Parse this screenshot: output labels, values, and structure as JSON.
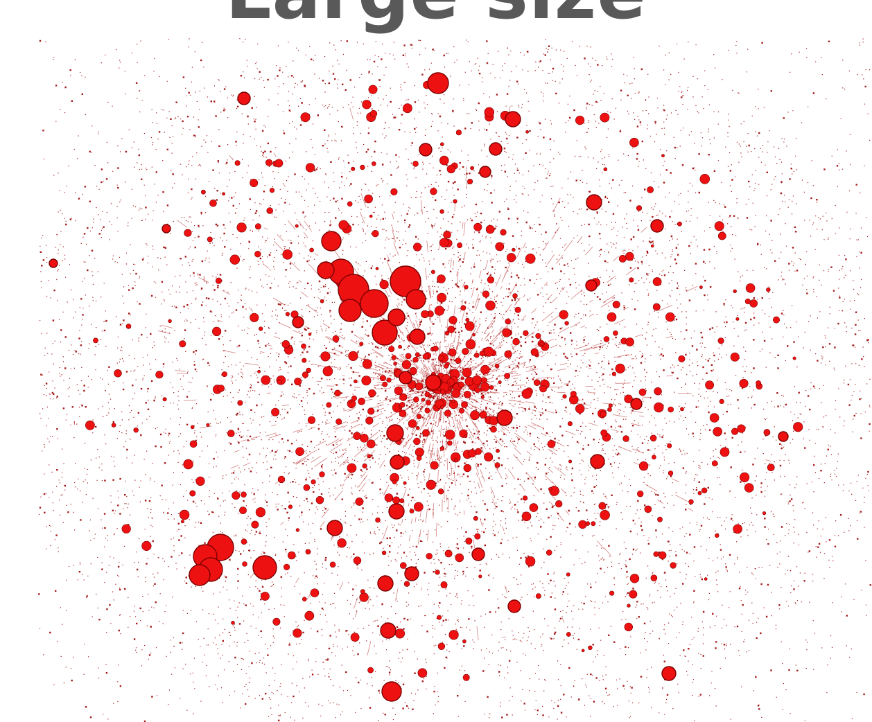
{
  "title": "Large size",
  "colors": {
    "node_fill": "#ee1111",
    "node_stroke": "#7a0000",
    "edge": "#b01818",
    "dust": "#a51b1b",
    "title": "#595959",
    "background": "#ffffff"
  }
}
